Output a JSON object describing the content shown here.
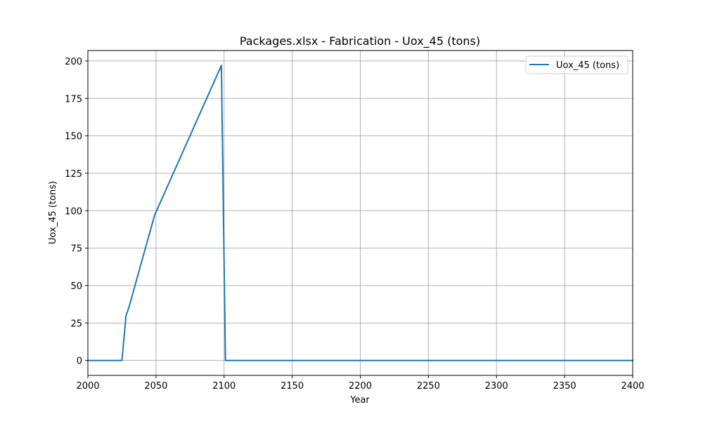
{
  "chart_data": {
    "type": "line",
    "title": "Packages.xlsx - Fabrication - Uox_45 (tons)",
    "xlabel": "Year",
    "ylabel": "Uox_45 (tons)",
    "xlim": [
      2000,
      2400
    ],
    "ylim": [
      -10,
      207
    ],
    "xticks": [
      2000,
      2050,
      2100,
      2150,
      2200,
      2250,
      2300,
      2350,
      2400
    ],
    "yticks": [
      0,
      25,
      50,
      75,
      100,
      125,
      150,
      175,
      200
    ],
    "grid": true,
    "legend_position": "top-right",
    "series": [
      {
        "name": "Uox_45 (tons)",
        "color": "#1f77b4",
        "x": [
          2000,
          2025,
          2028,
          2030,
          2049,
          2098,
          2101,
          2400
        ],
        "y": [
          0,
          0,
          30,
          35,
          97,
          197,
          0,
          0
        ]
      }
    ]
  }
}
